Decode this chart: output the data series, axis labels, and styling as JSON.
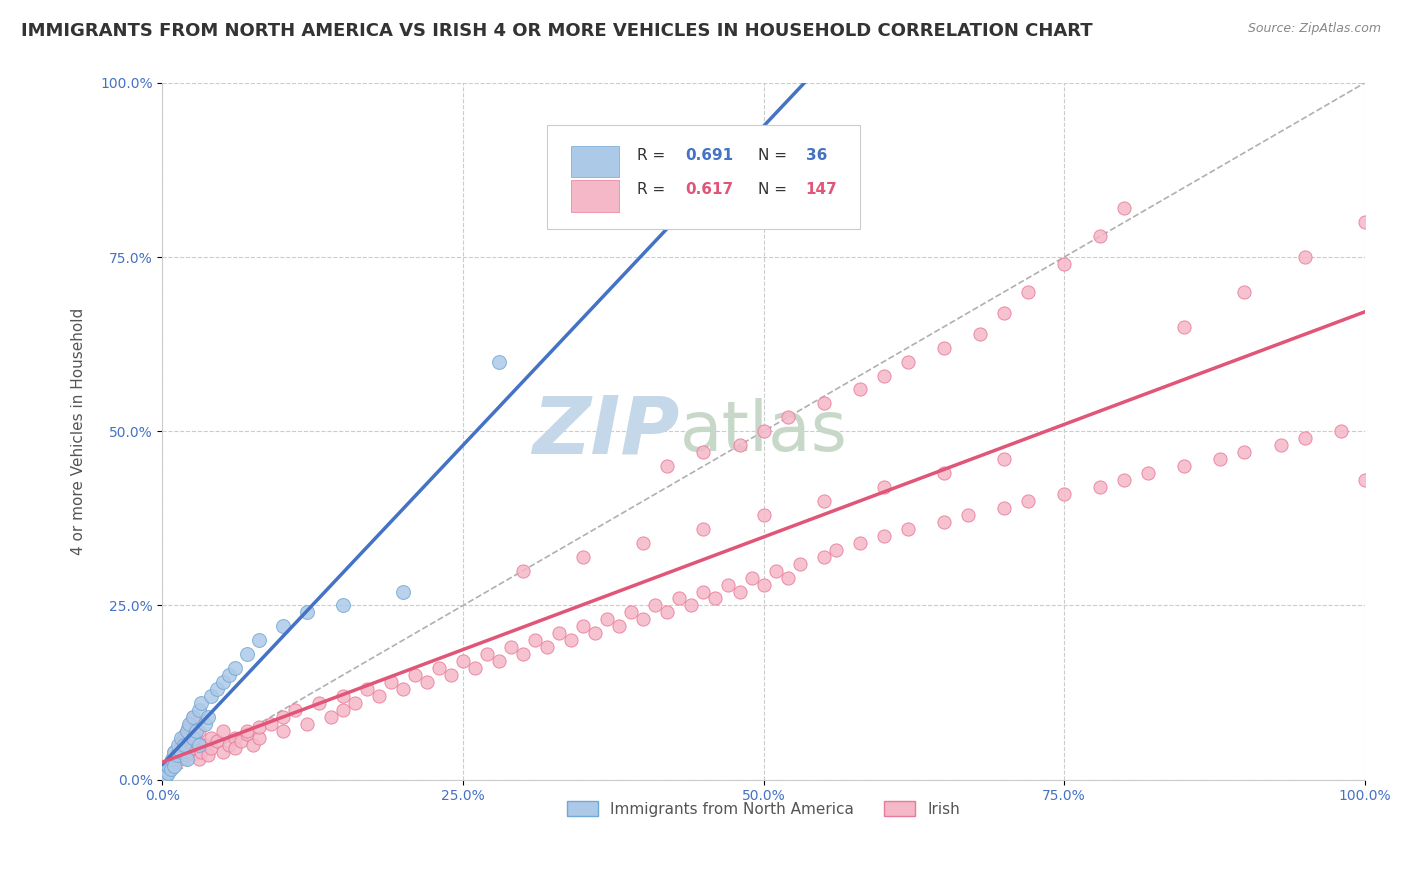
{
  "title": "IMMIGRANTS FROM NORTH AMERICA VS IRISH 4 OR MORE VEHICLES IN HOUSEHOLD CORRELATION CHART",
  "source": "Source: ZipAtlas.com",
  "ylabel": "4 or more Vehicles in Household",
  "xlim": [
    0,
    100
  ],
  "ylim": [
    0,
    100
  ],
  "xtick_labels": [
    "0.0%",
    "25.0%",
    "50.0%",
    "75.0%",
    "100.0%"
  ],
  "ytick_labels": [
    "0.0%",
    "25.0%",
    "50.0%",
    "75.0%",
    "100.0%"
  ],
  "xtick_values": [
    0,
    25,
    50,
    75,
    100
  ],
  "ytick_values": [
    0,
    25,
    50,
    75,
    100
  ],
  "series1_color": "#adc9e8",
  "series1_edge": "#6fa8d4",
  "series1_line": "#4472c4",
  "series1_label": "Immigrants from North America",
  "series1_R": "0.691",
  "series1_N": "36",
  "series2_color": "#f5b8c8",
  "series2_edge": "#e87a9a",
  "series2_line": "#e05578",
  "series2_label": "Irish",
  "series2_R": "0.617",
  "series2_N": "147",
  "watermark_zip": "ZIP",
  "watermark_atlas": "atlas",
  "watermark_color_zip": "#c5d8ea",
  "watermark_color_atlas": "#c8d8c8",
  "background_color": "#ffffff",
  "grid_color": "#cccccc",
  "title_fontsize": 13,
  "axis_label_fontsize": 11,
  "tick_fontsize": 10,
  "legend_color_blue": "#4472c4",
  "legend_color_pink": "#e05578",
  "na_x": [
    0.2,
    0.3,
    0.5,
    0.5,
    0.7,
    0.8,
    1.0,
    1.0,
    1.2,
    1.3,
    1.5,
    1.5,
    1.8,
    2.0,
    2.0,
    2.2,
    2.5,
    2.5,
    2.8,
    3.0,
    3.0,
    3.2,
    3.5,
    3.8,
    4.0,
    4.5,
    5.0,
    5.5,
    6.0,
    7.0,
    8.0,
    10.0,
    12.0,
    15.0,
    20.0,
    28.0
  ],
  "na_y": [
    0.3,
    0.5,
    1.0,
    2.0,
    1.5,
    3.0,
    2.0,
    4.0,
    3.5,
    5.0,
    4.0,
    6.0,
    5.0,
    7.0,
    3.0,
    8.0,
    6.0,
    9.0,
    7.0,
    10.0,
    5.0,
    11.0,
    8.0,
    9.0,
    12.0,
    13.0,
    14.0,
    15.0,
    16.0,
    18.0,
    20.0,
    22.0,
    24.0,
    25.0,
    27.0,
    60.0
  ],
  "irish_x": [
    0.1,
    0.2,
    0.3,
    0.4,
    0.5,
    0.5,
    0.6,
    0.7,
    0.8,
    0.9,
    1.0,
    1.0,
    1.1,
    1.2,
    1.3,
    1.4,
    1.5,
    1.5,
    1.6,
    1.7,
    1.8,
    1.9,
    2.0,
    2.0,
    2.1,
    2.2,
    2.3,
    2.4,
    2.5,
    2.5,
    2.6,
    2.8,
    3.0,
    3.0,
    3.2,
    3.5,
    3.8,
    4.0,
    4.0,
    4.5,
    5.0,
    5.0,
    5.5,
    6.0,
    6.0,
    6.5,
    7.0,
    7.0,
    7.5,
    8.0,
    8.0,
    9.0,
    10.0,
    10.0,
    11.0,
    12.0,
    13.0,
    14.0,
    15.0,
    15.0,
    16.0,
    17.0,
    18.0,
    19.0,
    20.0,
    21.0,
    22.0,
    23.0,
    24.0,
    25.0,
    26.0,
    27.0,
    28.0,
    29.0,
    30.0,
    31.0,
    32.0,
    33.0,
    34.0,
    35.0,
    36.0,
    37.0,
    38.0,
    39.0,
    40.0,
    41.0,
    42.0,
    43.0,
    44.0,
    45.0,
    46.0,
    47.0,
    48.0,
    49.0,
    50.0,
    51.0,
    52.0,
    53.0,
    55.0,
    56.0,
    58.0,
    60.0,
    62.0,
    65.0,
    67.0,
    70.0,
    72.0,
    75.0,
    78.0,
    80.0,
    82.0,
    85.0,
    88.0,
    90.0,
    93.0,
    95.0,
    98.0,
    100.0,
    42.0,
    45.0,
    48.0,
    50.0,
    52.0,
    55.0,
    58.0,
    60.0,
    62.0,
    65.0,
    68.0,
    70.0,
    72.0,
    75.0,
    78.0,
    80.0,
    85.0,
    90.0,
    95.0,
    100.0,
    30.0,
    35.0,
    40.0,
    45.0,
    50.0,
    55.0,
    60.0,
    65.0,
    70.0
  ],
  "irish_y": [
    0.2,
    0.5,
    0.8,
    1.0,
    1.5,
    2.0,
    1.8,
    2.5,
    2.0,
    3.0,
    2.5,
    4.0,
    3.0,
    3.5,
    4.0,
    4.5,
    5.0,
    3.0,
    5.5,
    6.0,
    4.0,
    6.5,
    7.0,
    3.5,
    7.5,
    4.0,
    8.0,
    4.5,
    5.0,
    9.0,
    5.5,
    6.0,
    3.0,
    7.0,
    4.0,
    5.0,
    3.5,
    4.5,
    6.0,
    5.5,
    4.0,
    7.0,
    5.0,
    6.0,
    4.5,
    5.5,
    6.5,
    7.0,
    5.0,
    6.0,
    7.5,
    8.0,
    7.0,
    9.0,
    10.0,
    8.0,
    11.0,
    9.0,
    10.0,
    12.0,
    11.0,
    13.0,
    12.0,
    14.0,
    13.0,
    15.0,
    14.0,
    16.0,
    15.0,
    17.0,
    16.0,
    18.0,
    17.0,
    19.0,
    18.0,
    20.0,
    19.0,
    21.0,
    20.0,
    22.0,
    21.0,
    23.0,
    22.0,
    24.0,
    23.0,
    25.0,
    24.0,
    26.0,
    25.0,
    27.0,
    26.0,
    28.0,
    27.0,
    29.0,
    28.0,
    30.0,
    29.0,
    31.0,
    32.0,
    33.0,
    34.0,
    35.0,
    36.0,
    37.0,
    38.0,
    39.0,
    40.0,
    41.0,
    42.0,
    43.0,
    44.0,
    45.0,
    46.0,
    47.0,
    48.0,
    49.0,
    50.0,
    43.0,
    45.0,
    47.0,
    48.0,
    50.0,
    52.0,
    54.0,
    56.0,
    58.0,
    60.0,
    62.0,
    64.0,
    67.0,
    70.0,
    74.0,
    78.0,
    82.0,
    65.0,
    70.0,
    75.0,
    80.0,
    30.0,
    32.0,
    34.0,
    36.0,
    38.0,
    40.0,
    42.0,
    44.0,
    46.0
  ]
}
